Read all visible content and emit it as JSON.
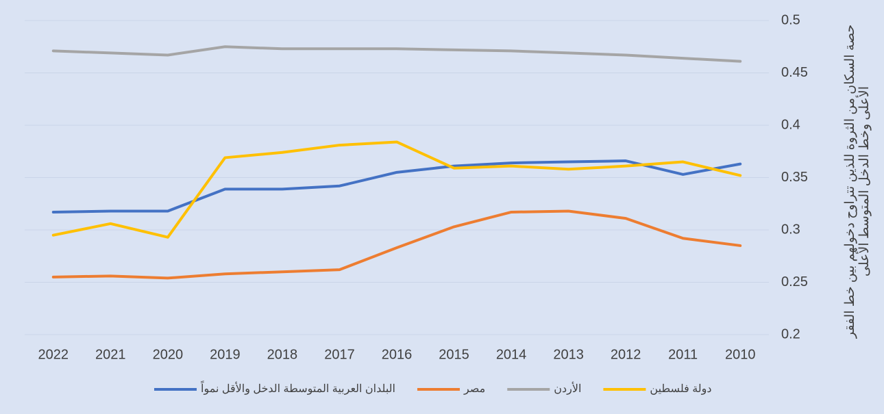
{
  "chart_data": {
    "type": "line",
    "y_label": "حصة السكان من الثروة للذين تتراوح دخولهم بين خط الفقر الأعلى وخط الدخل المتوسط الأعلى",
    "categories": [
      "2022",
      "2021",
      "2020",
      "2019",
      "2018",
      "2017",
      "2016",
      "2015",
      "2014",
      "2013",
      "2012",
      "2011",
      "2010"
    ],
    "series": [
      {
        "name": "البلدان العربية المتوسطة الدخل والأقل نمواً",
        "color": "#4472c4",
        "values": [
          0.317,
          0.318,
          0.318,
          0.339,
          0.339,
          0.342,
          0.355,
          0.361,
          0.364,
          0.365,
          0.366,
          0.353,
          0.363
        ]
      },
      {
        "name": "مصر",
        "color": "#ed7d31",
        "values": [
          0.255,
          0.256,
          0.254,
          0.258,
          0.26,
          0.262,
          0.283,
          0.303,
          0.317,
          0.318,
          0.311,
          0.292,
          0.285
        ]
      },
      {
        "name": "الأردن",
        "color": "#a5a5a5",
        "values": [
          0.471,
          0.469,
          0.467,
          0.475,
          0.473,
          0.473,
          0.473,
          0.472,
          0.471,
          0.469,
          0.467,
          0.464,
          0.461
        ]
      },
      {
        "name": "دولة فلسطين",
        "color": "#ffc000",
        "values": [
          0.295,
          0.306,
          0.293,
          0.369,
          0.374,
          0.381,
          0.384,
          0.359,
          0.361,
          0.358,
          0.361,
          0.365,
          0.352
        ]
      }
    ],
    "ylim": [
      0.2,
      0.5
    ],
    "yticks": [
      0.2,
      0.25,
      0.3,
      0.35,
      0.4,
      0.45,
      0.5
    ],
    "grid": true,
    "legend": "bottom"
  }
}
